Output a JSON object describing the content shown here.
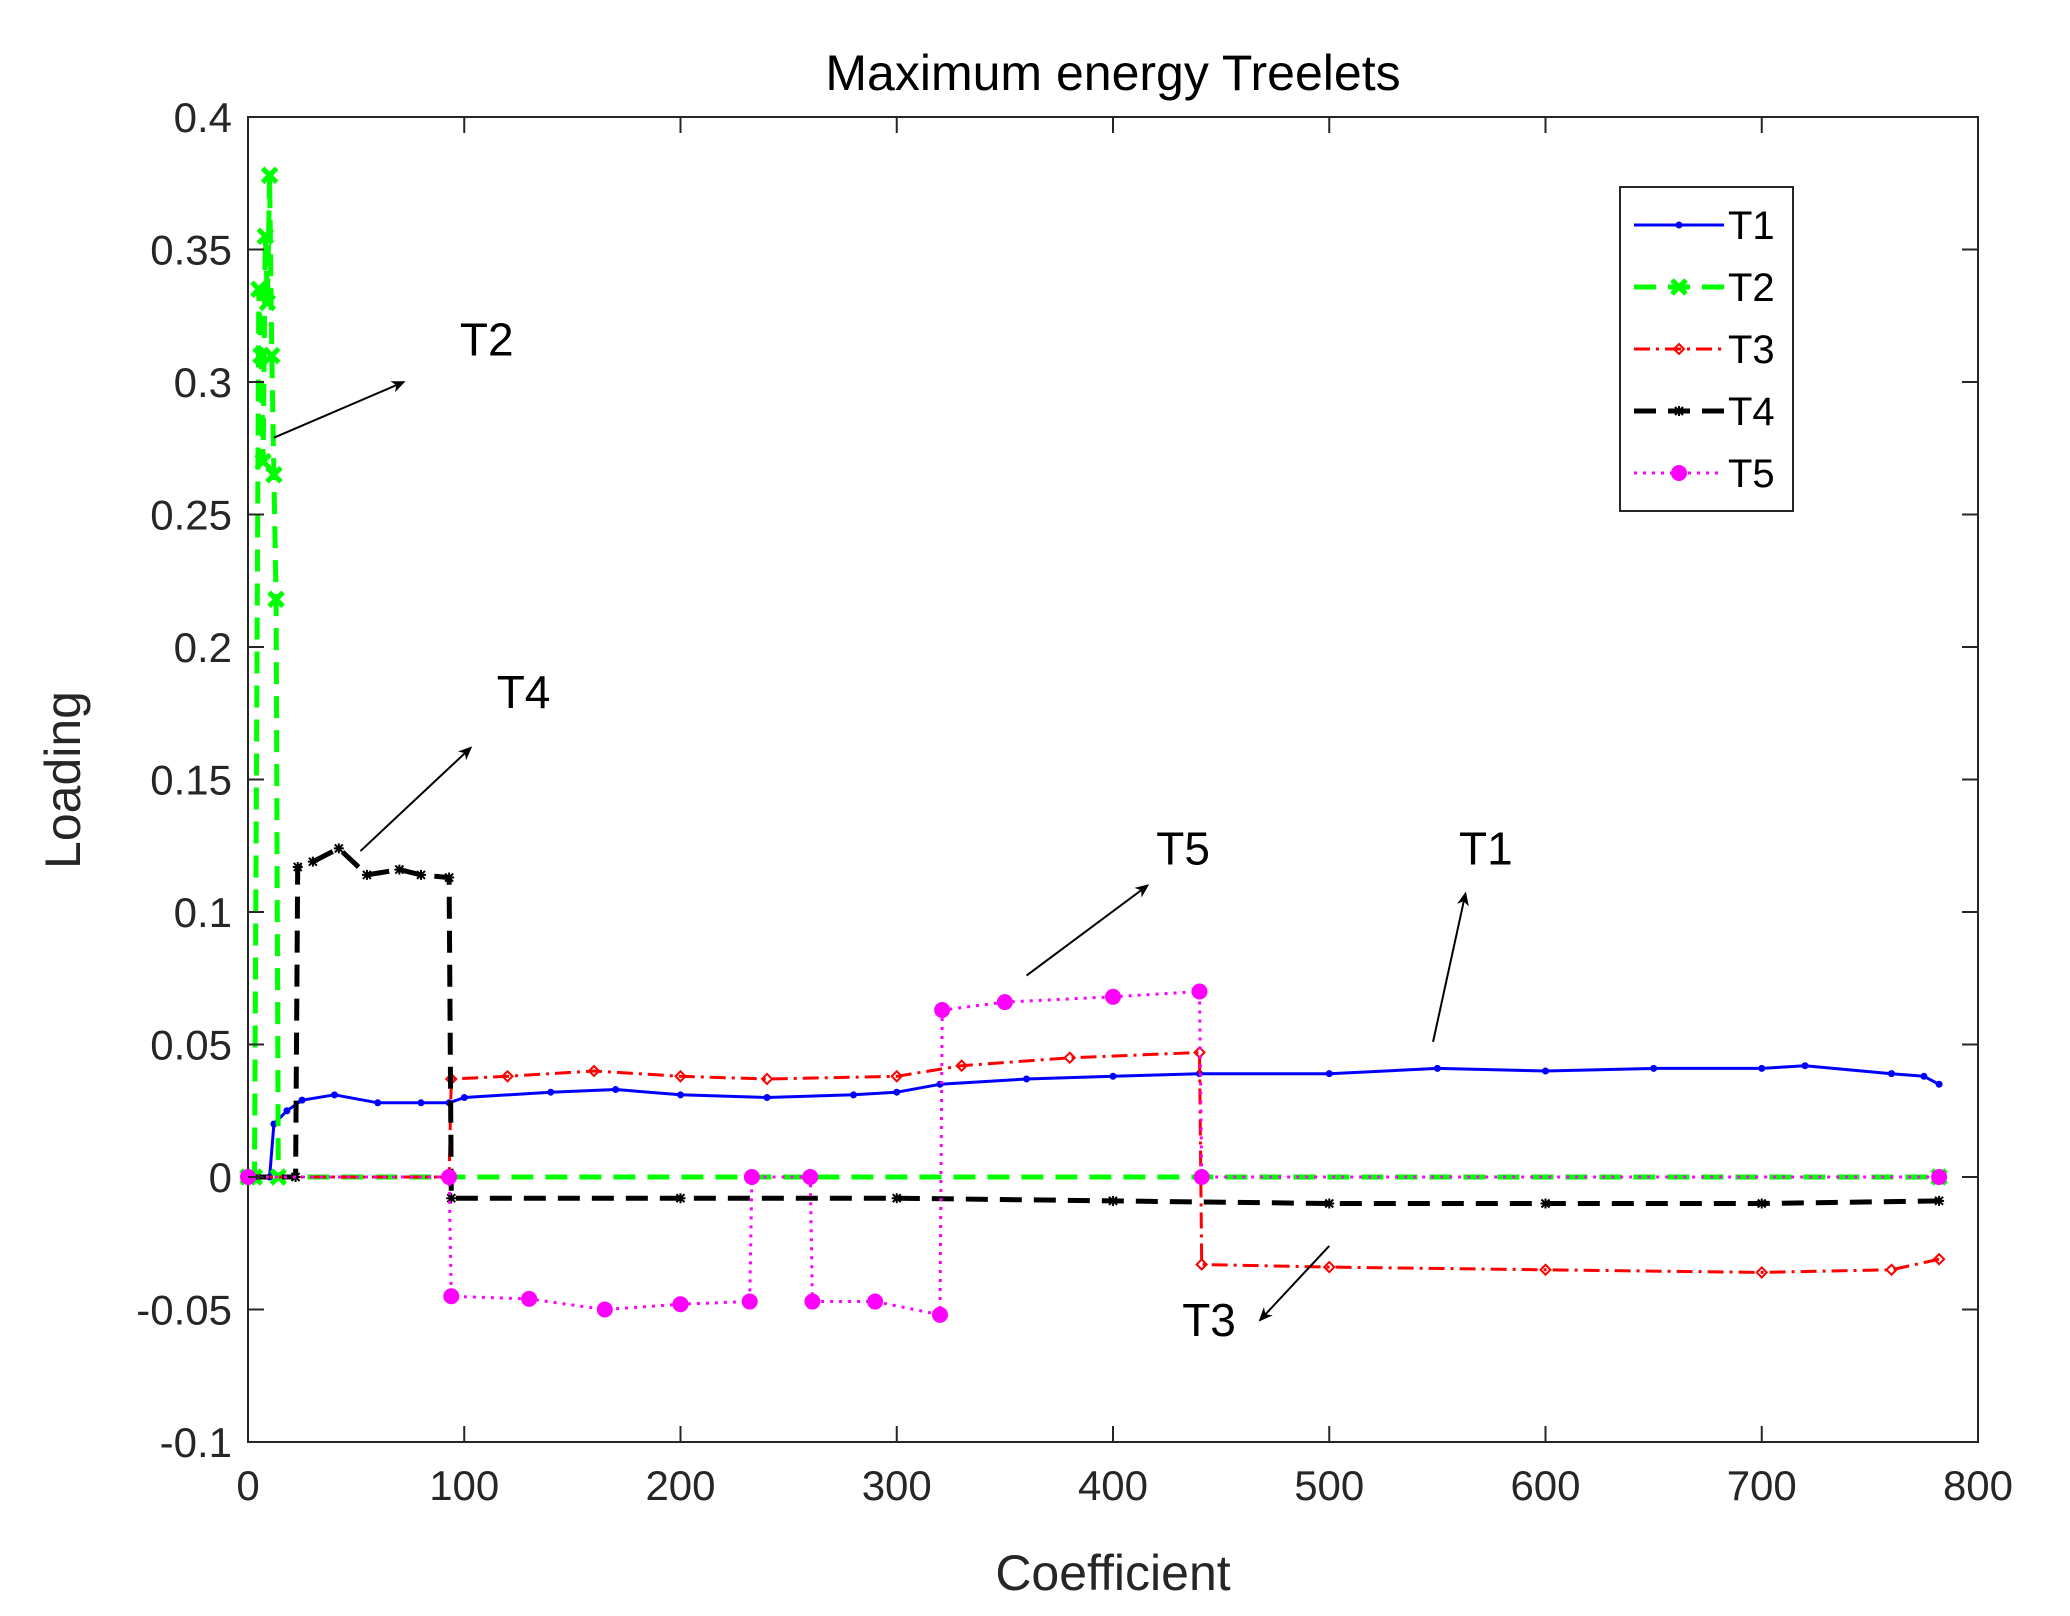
{
  "chart_data": {
    "type": "line",
    "title": "Maximum energy Treelets",
    "xlabel": "Coefficient",
    "ylabel": "Loading",
    "xlim": [
      0,
      800
    ],
    "ylim": [
      -0.1,
      0.4
    ],
    "xticks": [
      0,
      100,
      200,
      300,
      400,
      500,
      600,
      700,
      800
    ],
    "xtick_labels": [
      "0",
      "100",
      "200",
      "300",
      "400",
      "500",
      "600",
      "700",
      "800"
    ],
    "yticks": [
      -0.1,
      -0.05,
      0,
      0.05,
      0.1,
      0.15,
      0.2,
      0.25,
      0.3,
      0.35,
      0.4
    ],
    "ytick_labels": [
      "-0.1",
      "-0.05",
      "0",
      "0.05",
      "0.1",
      "0.15",
      "0.2",
      "0.25",
      "0.3",
      "0.35",
      "0.4"
    ],
    "grid": false,
    "legend_position": "top-right",
    "series": [
      {
        "name": "T1",
        "color": "#0000ff",
        "style": "solid",
        "marker": "dot",
        "points": [
          [
            0,
            0
          ],
          [
            10,
            0
          ],
          [
            12,
            0.02
          ],
          [
            18,
            0.025
          ],
          [
            25,
            0.029
          ],
          [
            40,
            0.031
          ],
          [
            60,
            0.028
          ],
          [
            80,
            0.028
          ],
          [
            93,
            0.028
          ],
          [
            100,
            0.03
          ],
          [
            140,
            0.032
          ],
          [
            170,
            0.033
          ],
          [
            200,
            0.031
          ],
          [
            240,
            0.03
          ],
          [
            280,
            0.031
          ],
          [
            300,
            0.032
          ],
          [
            320,
            0.035
          ],
          [
            360,
            0.037
          ],
          [
            400,
            0.038
          ],
          [
            440,
            0.039
          ],
          [
            500,
            0.039
          ],
          [
            550,
            0.041
          ],
          [
            600,
            0.04
          ],
          [
            650,
            0.041
          ],
          [
            700,
            0.041
          ],
          [
            720,
            0.042
          ],
          [
            760,
            0.039
          ],
          [
            775,
            0.038
          ],
          [
            782,
            0.035
          ]
        ]
      },
      {
        "name": "T2",
        "color": "#00ff00",
        "style": "dashed",
        "marker": "x",
        "points": [
          [
            0,
            0
          ],
          [
            3,
            0
          ],
          [
            5,
            0.335
          ],
          [
            6,
            0.31
          ],
          [
            7,
            0.27
          ],
          [
            8,
            0.355
          ],
          [
            9,
            0.33
          ],
          [
            10,
            0.378
          ],
          [
            11,
            0.31
          ],
          [
            12,
            0.265
          ],
          [
            13,
            0.218
          ],
          [
            14,
            0
          ],
          [
            782,
            0
          ]
        ]
      },
      {
        "name": "T3",
        "color": "#ff0000",
        "style": "dashdot",
        "marker": "diamond",
        "points": [
          [
            0,
            0
          ],
          [
            93,
            0
          ],
          [
            94,
            0.037
          ],
          [
            120,
            0.038
          ],
          [
            160,
            0.04
          ],
          [
            200,
            0.038
          ],
          [
            240,
            0.037
          ],
          [
            300,
            0.038
          ],
          [
            330,
            0.042
          ],
          [
            380,
            0.045
          ],
          [
            440,
            0.047
          ],
          [
            441,
            -0.033
          ],
          [
            500,
            -0.034
          ],
          [
            600,
            -0.035
          ],
          [
            700,
            -0.036
          ],
          [
            760,
            -0.035
          ],
          [
            782,
            -0.031
          ]
        ]
      },
      {
        "name": "T4",
        "color": "#000000",
        "style": "dashed",
        "marker": "star",
        "points": [
          [
            0,
            0
          ],
          [
            22,
            0
          ],
          [
            23,
            0.117
          ],
          [
            30,
            0.119
          ],
          [
            42,
            0.124
          ],
          [
            55,
            0.114
          ],
          [
            70,
            0.116
          ],
          [
            80,
            0.114
          ],
          [
            93,
            0.113
          ],
          [
            94,
            -0.008
          ],
          [
            200,
            -0.008
          ],
          [
            300,
            -0.008
          ],
          [
            400,
            -0.009
          ],
          [
            500,
            -0.01
          ],
          [
            600,
            -0.01
          ],
          [
            700,
            -0.01
          ],
          [
            782,
            -0.009
          ]
        ]
      },
      {
        "name": "T5",
        "color": "#ff00ff",
        "style": "dotted",
        "marker": "circle",
        "points": [
          [
            0,
            0
          ],
          [
            93,
            0
          ],
          [
            94,
            -0.045
          ],
          [
            130,
            -0.046
          ],
          [
            165,
            -0.05
          ],
          [
            200,
            -0.048
          ],
          [
            232,
            -0.047
          ],
          [
            233,
            0
          ],
          [
            260,
            0
          ],
          [
            261,
            -0.047
          ],
          [
            290,
            -0.047
          ],
          [
            320,
            -0.052
          ],
          [
            321,
            0.063
          ],
          [
            350,
            0.066
          ],
          [
            400,
            0.068
          ],
          [
            440,
            0.07
          ],
          [
            441,
            0
          ],
          [
            782,
            0
          ]
        ]
      }
    ],
    "annotations": [
      {
        "text": "T2",
        "x": 98,
        "y": 0.31,
        "arrow_from": [
          12,
          0.279
        ],
        "arrow_to": [
          72,
          0.3
        ]
      },
      {
        "text": "T4",
        "x": 115,
        "y": 0.177,
        "arrow_from": [
          52,
          0.123
        ],
        "arrow_to": [
          103,
          0.162
        ]
      },
      {
        "text": "T5",
        "x": 420,
        "y": 0.118,
        "arrow_from": [
          360,
          0.076
        ],
        "arrow_to": [
          416,
          0.11
        ]
      },
      {
        "text": "T1",
        "x": 560,
        "y": 0.118,
        "arrow_from": [
          548,
          0.051
        ],
        "arrow_to": [
          563,
          0.107
        ]
      },
      {
        "text": "T3",
        "x": 432,
        "y": -0.06,
        "arrow_from": [
          500,
          -0.026
        ],
        "arrow_to": [
          468,
          -0.054
        ]
      }
    ]
  }
}
